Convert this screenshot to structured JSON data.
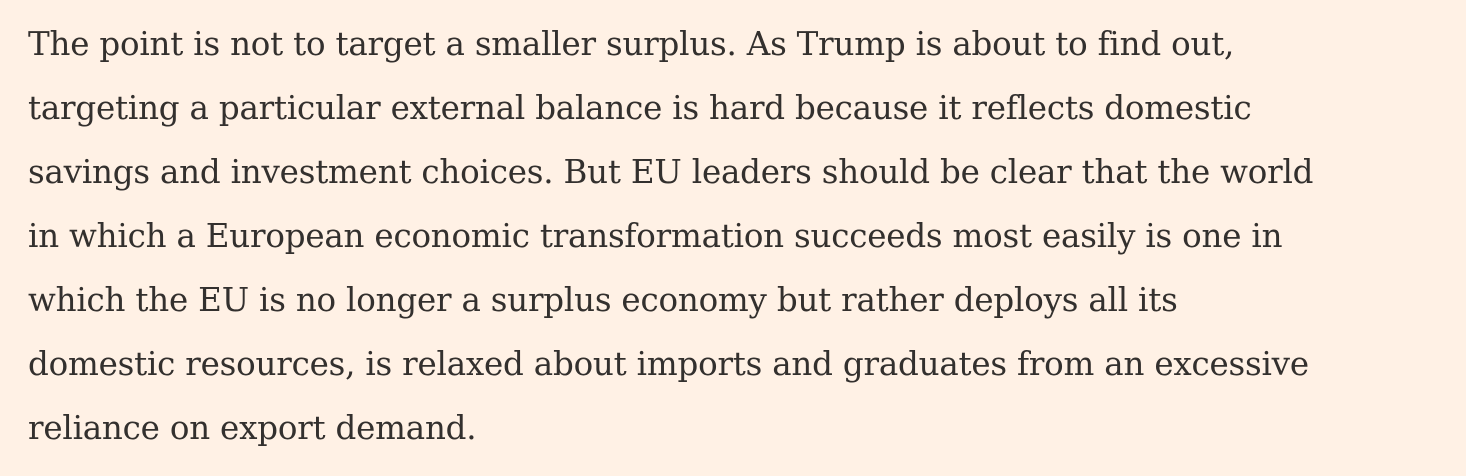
{
  "article": {
    "paragraph_lines": [
      "The point is not to target a smaller surplus. As Trump is about to find out,",
      "targeting a particular external balance is hard because it reflects domestic",
      "savings and investment choices. But EU leaders should be clear that the world",
      "in which a European economic transformation succeeds most easily is one in",
      "which the EU is no longer a surplus economy but rather deploys all its",
      "domestic resources, is relaxed about imports and graduates from an excessive",
      "reliance on export demand."
    ]
  },
  "colors": {
    "background": "#FFF1E5",
    "text": "#33302E"
  }
}
